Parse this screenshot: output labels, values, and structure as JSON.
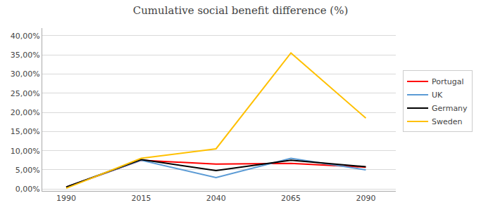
{
  "chart_data": {
    "type": "line",
    "title": "Cumulative social benefit difference (%)",
    "x": [
      1990,
      2015,
      2040,
      2065,
      2090
    ],
    "series": [
      {
        "name": "Portugal",
        "color": "#FF0000",
        "values": [
          0.005,
          0.075,
          0.065,
          0.067,
          0.057
        ]
      },
      {
        "name": "UK",
        "color": "#5B9BD5",
        "values": [
          0.005,
          0.075,
          0.03,
          0.08,
          0.05
        ]
      },
      {
        "name": "Germany",
        "color": "#000000",
        "values": [
          0.005,
          0.077,
          0.048,
          0.075,
          0.058
        ]
      },
      {
        "name": "Sweden",
        "color": "#FFC000",
        "values": [
          0.002,
          0.08,
          0.105,
          0.355,
          0.185
        ]
      }
    ],
    "xlim": [
      1982,
      2100
    ],
    "xticks": [
      1990,
      2015,
      2040,
      2065,
      2090
    ],
    "ylim": [
      -0.005,
      0.42
    ],
    "yticks": [
      {
        "value": 0.0,
        "label": "0,00%"
      },
      {
        "value": 0.05,
        "label": "5,00%"
      },
      {
        "value": 0.1,
        "label": "10,00%"
      },
      {
        "value": 0.15,
        "label": "15,00%"
      },
      {
        "value": 0.2,
        "label": "20,00%"
      },
      {
        "value": 0.25,
        "label": "25,00%"
      },
      {
        "value": 0.3,
        "label": "30,00%"
      },
      {
        "value": 0.35,
        "label": "35,00%"
      },
      {
        "value": 0.4,
        "label": "40,00%"
      }
    ],
    "grid": true,
    "legend": "right"
  }
}
